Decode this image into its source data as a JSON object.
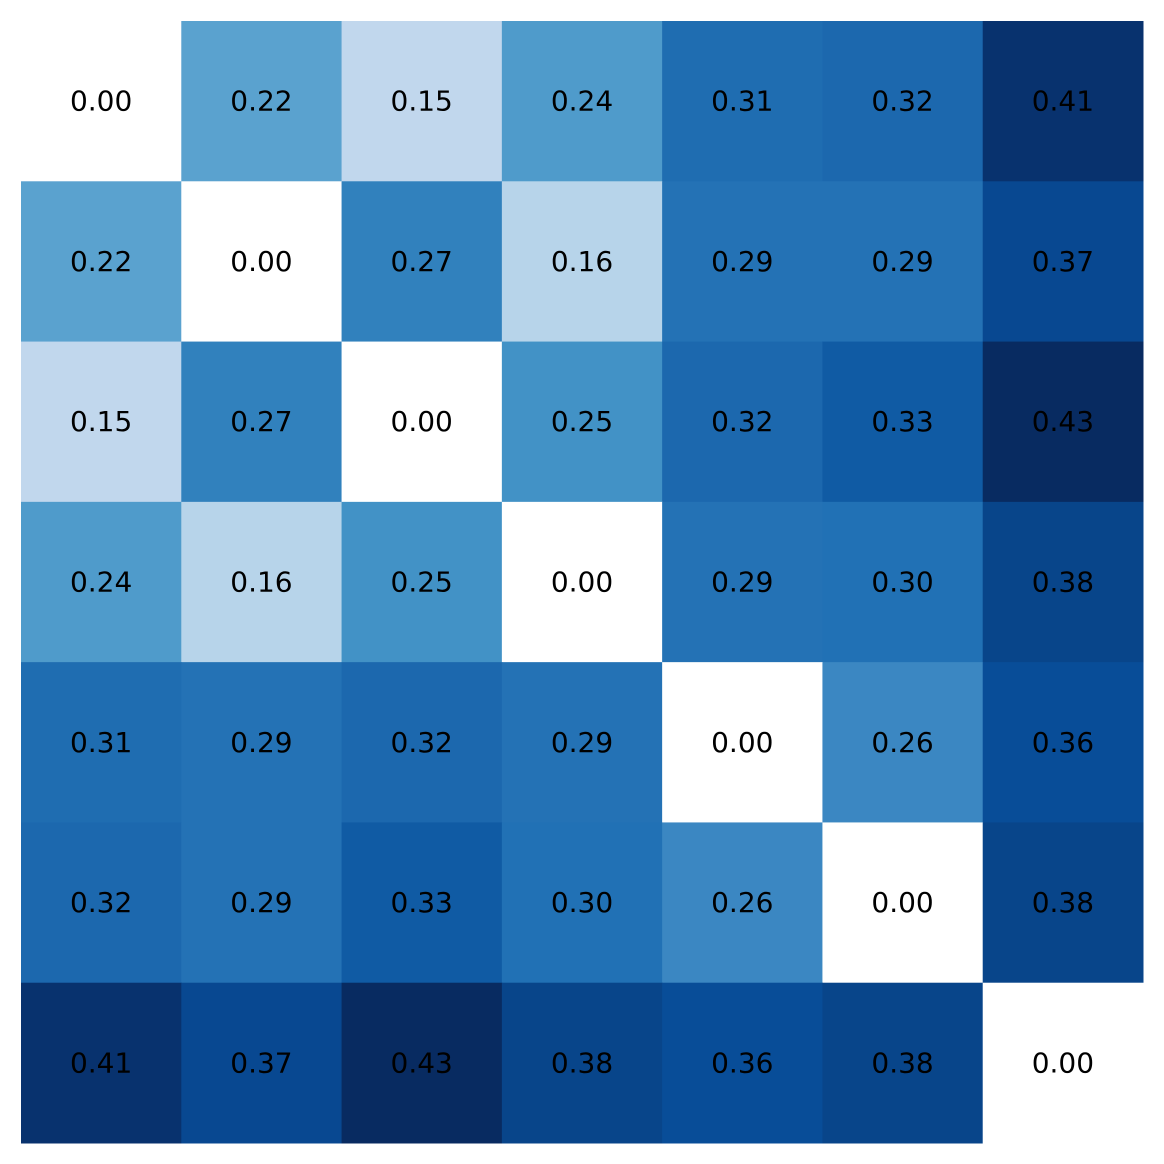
{
  "chart_data": {
    "type": "heatmap",
    "title": "",
    "xlabel": "",
    "ylabel": "",
    "grid": false,
    "axes_visible": false,
    "colormap": "Blues",
    "color_range": [
      0.0,
      0.43
    ],
    "value_format": "2 decimals",
    "values": [
      [
        0.0,
        0.22,
        0.15,
        0.24,
        0.31,
        0.32,
        0.41
      ],
      [
        0.22,
        0.0,
        0.27,
        0.16,
        0.29,
        0.29,
        0.37
      ],
      [
        0.15,
        0.27,
        0.0,
        0.25,
        0.32,
        0.33,
        0.43
      ],
      [
        0.24,
        0.16,
        0.25,
        0.0,
        0.29,
        0.3,
        0.38
      ],
      [
        0.31,
        0.29,
        0.32,
        0.29,
        0.0,
        0.26,
        0.36
      ],
      [
        0.32,
        0.29,
        0.33,
        0.3,
        0.26,
        0.0,
        0.38
      ],
      [
        0.41,
        0.37,
        0.43,
        0.38,
        0.36,
        0.38,
        0.0
      ]
    ],
    "labels": [
      [
        "0.00",
        "0.22",
        "0.15",
        "0.24",
        "0.31",
        "0.32",
        "0.41"
      ],
      [
        "0.22",
        "0.00",
        "0.27",
        "0.16",
        "0.29",
        "0.29",
        "0.37"
      ],
      [
        "0.15",
        "0.27",
        "0.00",
        "0.25",
        "0.32",
        "0.33",
        "0.43"
      ],
      [
        "0.24",
        "0.16",
        "0.25",
        "0.00",
        "0.29",
        "0.30",
        "0.38"
      ],
      [
        "0.31",
        "0.29",
        "0.32",
        "0.29",
        "0.00",
        "0.26",
        "0.36"
      ],
      [
        "0.32",
        "0.29",
        "0.33",
        "0.30",
        "0.26",
        "0.00",
        "0.38"
      ],
      [
        "0.41",
        "0.37",
        "0.43",
        "0.38",
        "0.36",
        "0.38",
        "0.00"
      ]
    ],
    "colors": [
      [
        "#ffffff",
        "#5aa2cf",
        "#c1d7ed",
        "#4f9bcb",
        "#1f6db1",
        "#1c68ae",
        "#08326e"
      ],
      [
        "#5aa2cf",
        "#ffffff",
        "#3181bd",
        "#b7d4ea",
        "#2472b5",
        "#2472b5",
        "#084891"
      ],
      [
        "#c1d7ed",
        "#3181bd",
        "#ffffff",
        "#4292c6",
        "#1c68ae",
        "#105ba4",
        "#082b61"
      ],
      [
        "#4f9bcb",
        "#b7d4ea",
        "#4292c6",
        "#ffffff",
        "#2472b5",
        "#2171b5",
        "#08458a"
      ],
      [
        "#1f6db1",
        "#2472b5",
        "#1c68ae",
        "#2472b5",
        "#ffffff",
        "#3b87c2",
        "#084d98"
      ],
      [
        "#1c68ae",
        "#2472b5",
        "#105ba4",
        "#2171b5",
        "#3b87c2",
        "#ffffff",
        "#08458a"
      ],
      [
        "#08326e",
        "#084891",
        "#082b61",
        "#08458a",
        "#084d98",
        "#08458a",
        "#ffffff"
      ]
    ]
  }
}
